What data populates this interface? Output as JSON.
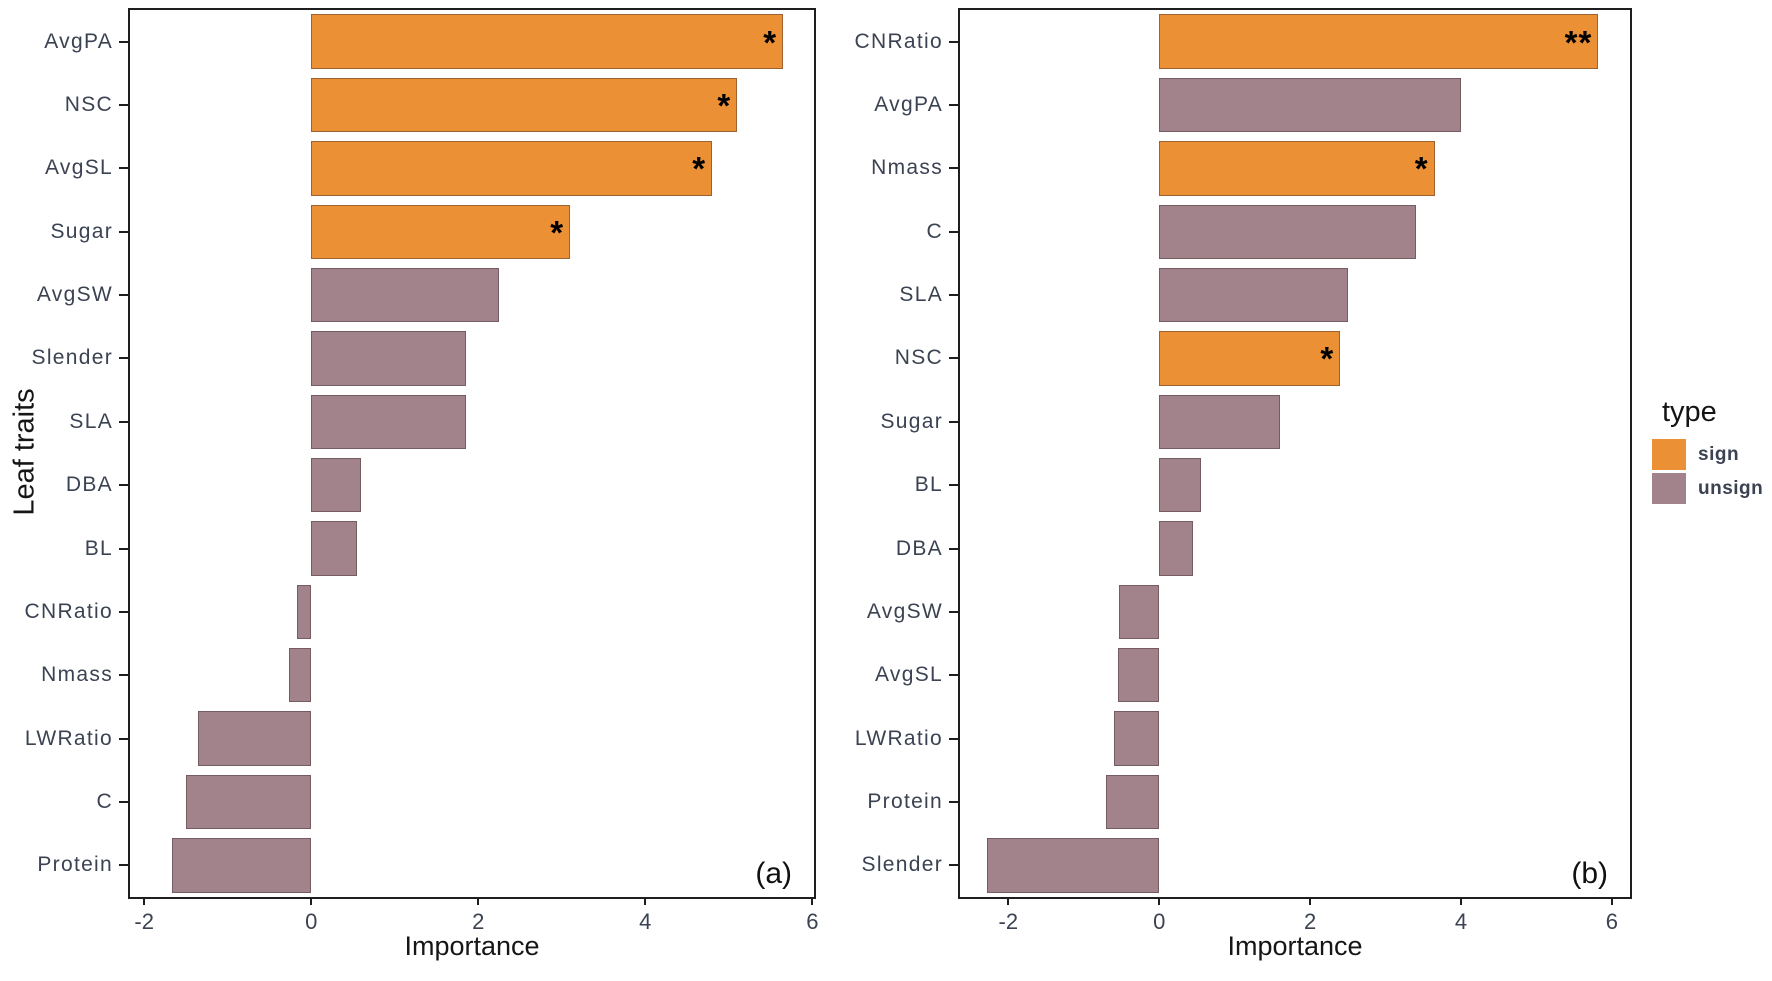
{
  "figure": {
    "background": "#ffffff",
    "y_axis_shared_title": "Leaf traits"
  },
  "colors": {
    "sign": "#EC9036",
    "unsign": "#A3838B"
  },
  "legend": {
    "title": "type",
    "items": [
      {
        "label": "sign",
        "color": "#EC9036"
      },
      {
        "label": "unsign",
        "color": "#A3838B"
      }
    ]
  },
  "chart_data": [
    {
      "type": "bar",
      "orientation": "horizontal",
      "panel_label": "(a)",
      "title": "",
      "xlabel": "Importance",
      "ylabel": "Leaf traits",
      "x_ticks": [
        -2,
        0,
        2,
        4,
        6
      ],
      "xlim": [
        -2.17,
        6.02
      ],
      "grid": false,
      "categories": [
        "AvgPA",
        "NSC",
        "AvgSL",
        "Sugar",
        "AvgSW",
        "Slender",
        "SLA",
        "DBA",
        "BL",
        "CNRatio",
        "Nmass",
        "LWRatio",
        "C",
        "Protein"
      ],
      "values": [
        5.65,
        5.1,
        4.8,
        3.1,
        2.25,
        1.85,
        1.85,
        0.6,
        0.55,
        -0.17,
        -0.27,
        -1.35,
        -1.5,
        -1.67
      ],
      "types": [
        "sign",
        "sign",
        "sign",
        "sign",
        "unsign",
        "unsign",
        "unsign",
        "unsign",
        "unsign",
        "unsign",
        "unsign",
        "unsign",
        "unsign",
        "unsign"
      ],
      "significance": [
        "*",
        "*",
        "*",
        "*",
        "",
        "",
        "",
        "",
        "",
        "",
        "",
        "",
        "",
        ""
      ]
    },
    {
      "type": "bar",
      "orientation": "horizontal",
      "panel_label": "(b)",
      "title": "",
      "xlabel": "Importance",
      "ylabel": "",
      "x_ticks": [
        -2,
        0,
        2,
        4,
        6
      ],
      "xlim": [
        -2.64,
        6.24
      ],
      "grid": false,
      "categories": [
        "CNRatio",
        "AvgPA",
        "Nmass",
        "C",
        "SLA",
        "NSC",
        "Sugar",
        "BL",
        "DBA",
        "AvgSW",
        "AvgSL",
        "LWRatio",
        "Protein",
        "Slender"
      ],
      "values": [
        5.82,
        4.0,
        3.65,
        3.4,
        2.5,
        2.4,
        1.6,
        0.55,
        0.45,
        -0.53,
        -0.55,
        -0.6,
        -0.7,
        -2.28
      ],
      "types": [
        "sign",
        "unsign",
        "sign",
        "unsign",
        "unsign",
        "sign",
        "unsign",
        "unsign",
        "unsign",
        "unsign",
        "unsign",
        "unsign",
        "unsign",
        "unsign"
      ],
      "significance": [
        "**",
        "",
        "*",
        "",
        "",
        "*",
        "",
        "",
        "",
        "",
        "",
        "",
        "",
        ""
      ]
    }
  ]
}
